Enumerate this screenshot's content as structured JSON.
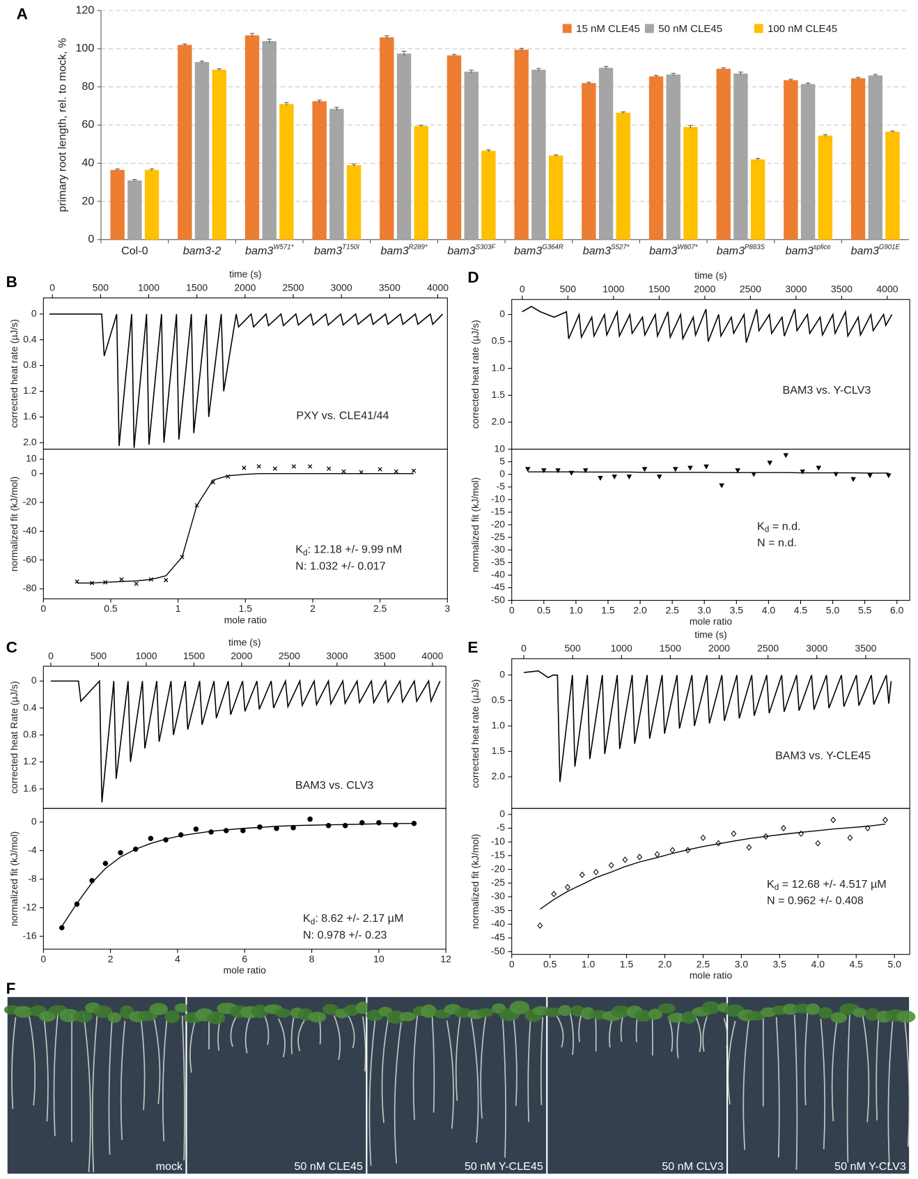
{
  "panel_labels": [
    "A",
    "B",
    "C",
    "D",
    "E",
    "F"
  ],
  "chart_data": [
    {
      "type": "bar",
      "y_label": "primary root length, rel. to mock, %",
      "categories": [
        "Col-0",
        "bam3-2",
        "bam3",
        "bam3",
        "bam3",
        "bam3",
        "bam3",
        "bam3",
        "bam3",
        "bam3",
        "bam3",
        "bam3"
      ],
      "category_superscripts": [
        null,
        null,
        "W571*",
        "T150I",
        "R289*",
        "S303F",
        "G364R",
        "S527*",
        "W807*",
        "P883S",
        "splice",
        "G901E"
      ],
      "series": [
        {
          "name": "15 nM CLE45",
          "color": "#ed7d31",
          "values": [
            36.5,
            102,
            107,
            72.5,
            106,
            96.5,
            99.5,
            82,
            85.5,
            89.5,
            83.5,
            84.5
          ],
          "errors": [
            0.5,
            0.5,
            1,
            0.6,
            0.8,
            0.5,
            0.7,
            0.5,
            0.5,
            0.5,
            0.5,
            0.5
          ]
        },
        {
          "name": "50 nM CLE45",
          "color": "#a5a5a5",
          "values": [
            31,
            93,
            104,
            68.5,
            97.5,
            88,
            89,
            90,
            86.5,
            87,
            81.5,
            86
          ],
          "errors": [
            0.5,
            0.5,
            1,
            0.8,
            1.2,
            0.8,
            0.7,
            0.7,
            0.6,
            0.8,
            0.5,
            0.5
          ]
        },
        {
          "name": "100 nM CLE45",
          "color": "#ffc000",
          "values": [
            36.5,
            89,
            71,
            39,
            59.5,
            46.5,
            44,
            66.5,
            59,
            42,
            54.5,
            56.5
          ],
          "errors": [
            0.5,
            0.5,
            0.8,
            0.6,
            0.4,
            0.5,
            0.4,
            0.4,
            0.8,
            0.5,
            0.5,
            0.4
          ]
        }
      ],
      "ylim": [
        0,
        120
      ],
      "yticks": [
        0,
        20,
        40,
        60,
        80,
        100,
        120
      ],
      "grid": true,
      "legend": "top-right"
    },
    {
      "type": "line",
      "x_label": "time (s)",
      "y_label": "corrected heat rate (µJ/s)",
      "annotation": "PXY vs. CLE41/44",
      "color": "#000000",
      "x_axis": "top",
      "y_inverted": true,
      "x": [
        -30,
        513,
        538,
        668,
        693,
        823,
        848,
        978,
        1003,
        1133,
        1158,
        1288,
        1313,
        1443,
        1468,
        1598,
        1623,
        1753,
        1778,
        1908,
        1933,
        2063,
        2088,
        2218,
        2243,
        2373,
        2398,
        2528,
        2553,
        2683,
        2708,
        2838,
        2863,
        2993,
        3018,
        3148,
        3173,
        3303,
        3328,
        3458,
        3483,
        3613,
        3638,
        3768,
        3793,
        3923,
        3948,
        4050
      ],
      "values": [
        0,
        0,
        0.65,
        0,
        2.05,
        0,
        2.08,
        0,
        2.03,
        0,
        2.0,
        0,
        1.95,
        0,
        1.85,
        0,
        1.6,
        0,
        1.2,
        0,
        0.2,
        0,
        0.2,
        0,
        0.18,
        0,
        0.18,
        0,
        0.17,
        0,
        0.17,
        0,
        0.17,
        0,
        0.17,
        0,
        0.16,
        0,
        0.16,
        0,
        0.16,
        0,
        0.16,
        0,
        0.16,
        0,
        0.16,
        0
      ],
      "xlim": [
        -93,
        4100
      ],
      "xticks": [
        0,
        500,
        1000,
        1500,
        2000,
        2500,
        3000,
        3500,
        4000
      ],
      "ylim": [
        -0.25,
        2.1
      ],
      "yticks": [
        0,
        0.4,
        0.8,
        1.2,
        1.6,
        {
          "value": 2,
          "label": "2.0"
        }
      ]
    },
    {
      "type": "scatter",
      "x_label": "mole ratio",
      "y_label": "normalized fit (kJ/mol)",
      "x": [
        0.25,
        0.36,
        0.46,
        0.58,
        0.69,
        0.8,
        0.91,
        1.03,
        1.14,
        1.26,
        1.37,
        1.49,
        1.6,
        1.72,
        1.86,
        1.98,
        2.12,
        2.23,
        2.36,
        2.5,
        2.62,
        2.75
      ],
      "series": [
        {
          "marker": "x",
          "color": "#000000",
          "values": [
            -75,
            -76,
            -75.5,
            -73.5,
            -76.5,
            -73.5,
            -74,
            -58,
            -22,
            -6,
            -2,
            4,
            5,
            3.5,
            5,
            5,
            3.5,
            1.5,
            1,
            3,
            1.5,
            2
          ]
        },
        {
          "style": "line",
          "color": "#000000",
          "values": [
            -76,
            -76,
            -75.5,
            -75,
            -74.5,
            -73.5,
            -71,
            -58,
            -22,
            -4.5,
            -1.5,
            -0.5,
            0,
            0,
            0,
            0,
            0,
            0,
            0,
            0,
            0,
            0
          ]
        }
      ],
      "xlim": [
        0,
        3
      ],
      "xticks": [
        0,
        0.5,
        1,
        1.5,
        2,
        2.5,
        3
      ],
      "ylim": [
        -87,
        17
      ],
      "yticks": [
        10,
        0,
        -20,
        -40,
        -60,
        -80
      ],
      "kd": {
        "symbol": "K",
        "subscript": "d",
        "text": ": 12.18 +/- 9.99 nM"
      },
      "n_text": "N: 1.032 +/- 0.017"
    },
    {
      "type": "line",
      "x_label": "time (s)",
      "y_label": "corrected heat Rate (µJ/s)",
      "annotation": "BAM3 vs. CLV3",
      "color": "#000000",
      "x_axis": "top",
      "y_inverted": true,
      "x": [
        0,
        290,
        315,
        510,
        535,
        660,
        685,
        810,
        835,
        960,
        985,
        1110,
        1135,
        1260,
        1285,
        1410,
        1435,
        1560,
        1585,
        1710,
        1735,
        1860,
        1885,
        2010,
        2035,
        2160,
        2185,
        2310,
        2335,
        2460,
        2485,
        2610,
        2635,
        2760,
        2785,
        2910,
        2935,
        3060,
        3085,
        3210,
        3235,
        3360,
        3385,
        3510,
        3535,
        3660,
        3685,
        3810,
        3835,
        3960,
        3985,
        4080
      ],
      "values": [
        0,
        0,
        0.3,
        0,
        1.8,
        0,
        1.45,
        0,
        1.2,
        0,
        1.0,
        0,
        0.9,
        0,
        0.8,
        0,
        0.72,
        0,
        0.65,
        0,
        0.55,
        0,
        0.5,
        0,
        0.45,
        0,
        0.42,
        0,
        0.4,
        0,
        0.38,
        0,
        0.36,
        0,
        0.35,
        0,
        0.34,
        0,
        0.33,
        0,
        0.32,
        0,
        0.32,
        0,
        0.31,
        0,
        0.31,
        0,
        0.3,
        0,
        0.3,
        0
      ],
      "xlim": [
        -78,
        4141
      ],
      "xticks": [
        0,
        500,
        1000,
        1500,
        2000,
        2500,
        3000,
        3500,
        4000
      ],
      "ylim": [
        -0.22,
        1.89
      ],
      "yticks": [
        0,
        0.4,
        0.8,
        1.2,
        1.6
      ]
    },
    {
      "type": "scatter",
      "x_label": "mole ratio",
      "y_label": "normalized fit (kJ/mol)",
      "x": [
        0.55,
        1.0,
        1.45,
        1.85,
        2.3,
        2.75,
        3.2,
        3.65,
        4.1,
        4.55,
        5.0,
        5.45,
        5.95,
        6.45,
        6.95,
        7.45,
        7.95,
        8.5,
        9.0,
        9.5,
        10.0,
        10.5,
        11.05
      ],
      "series": [
        {
          "marker": "circle",
          "color": "#000000",
          "values": [
            -14.8,
            -11.5,
            -8.2,
            -5.8,
            -4.3,
            -3.8,
            -2.3,
            -2.5,
            -1.8,
            -1.0,
            -1.4,
            -1.2,
            -1.2,
            -0.7,
            -0.9,
            -0.8,
            0.4,
            -0.5,
            -0.5,
            -0.1,
            -0.1,
            -0.4,
            -0.2
          ]
        },
        {
          "style": "line",
          "color": "#000000",
          "values": [
            -14.6,
            -11.4,
            -8.5,
            -6.5,
            -4.9,
            -3.8,
            -3.0,
            -2.4,
            -1.9,
            -1.6,
            -1.3,
            -1.1,
            -0.9,
            -0.75,
            -0.6,
            -0.5,
            -0.45,
            -0.4,
            -0.35,
            -0.3,
            -0.25,
            -0.22,
            -0.2
          ]
        }
      ],
      "xlim": [
        0,
        12
      ],
      "xticks": [
        0,
        2,
        4,
        6,
        8,
        10,
        12
      ],
      "ylim": [
        -17.8,
        1.9
      ],
      "yticks": [
        0,
        -4,
        -8,
        -12,
        -16
      ],
      "kd": {
        "symbol": "K",
        "subscript": "d",
        "text": ": 8.62 +/- 2.17 µM"
      },
      "n_text": "N: 0.978 +/- 0.23"
    },
    {
      "type": "line",
      "x_label": "time (s)",
      "y_label": "corrected heat rate (µJ/s)",
      "annotation": "BAM3 vs. Y-CLV3",
      "color": "#000000",
      "x_axis": "top",
      "y_inverted": true,
      "x": [
        0,
        100,
        200,
        350,
        484,
        509,
        623,
        648,
        762,
        787,
        901,
        926,
        1040,
        1065,
        1179,
        1204,
        1318,
        1343,
        1457,
        1482,
        1596,
        1621,
        1735,
        1760,
        1874,
        1899,
        2013,
        2038,
        2152,
        2177,
        2291,
        2316,
        2430,
        2455,
        2569,
        2594,
        2708,
        2733,
        2847,
        2872,
        2986,
        3011,
        3125,
        3150,
        3264,
        3289,
        3403,
        3428,
        3542,
        3567,
        3681,
        3706,
        3820,
        3845,
        3959,
        3984,
        4050
      ],
      "values": [
        -0.05,
        -0.15,
        -0.05,
        0.05,
        -0.05,
        0.45,
        0,
        0.42,
        0.05,
        0.4,
        0,
        0.38,
        -0.05,
        0.4,
        0,
        0.35,
        0.05,
        0.38,
        0,
        0.4,
        -0.05,
        0.42,
        0,
        0.45,
        0.05,
        0.38,
        -0.1,
        0.5,
        0,
        0.4,
        0.05,
        0.35,
        0,
        0.52,
        -0.1,
        0.3,
        0,
        0.35,
        0.05,
        0.4,
        -0.1,
        0.3,
        0,
        0.35,
        0.05,
        0.38,
        0,
        0.35,
        -0.05,
        0.4,
        0.05,
        0.38,
        0,
        0.3,
        0,
        0.2,
        0
      ],
      "xlim": [
        -115,
        4246
      ],
      "xticks": [
        0,
        500,
        1000,
        1500,
        2000,
        2500,
        3000,
        3500,
        4000
      ],
      "ylim": [
        -0.28,
        2.5
      ],
      "yticks": [
        0,
        0.5,
        {
          "value": 1,
          "label": "1.0"
        },
        1.5,
        {
          "value": 2,
          "label": "2.0"
        }
      ]
    },
    {
      "type": "scatter",
      "x_label": "mole ratio",
      "y_label": "normalized fit (kJ/mol)",
      "x": [
        0.25,
        0.5,
        0.72,
        0.93,
        1.15,
        1.38,
        1.6,
        1.83,
        2.07,
        2.3,
        2.55,
        2.78,
        3.03,
        3.27,
        3.52,
        3.77,
        4.02,
        4.27,
        4.53,
        4.78,
        5.05,
        5.32,
        5.58,
        5.87
      ],
      "series": [
        {
          "marker": "triangle",
          "color": "#000000",
          "values": [
            2,
            1.5,
            1.5,
            0.5,
            1.5,
            -1.5,
            -1,
            -1,
            2,
            -1,
            2,
            2.5,
            3,
            -4.5,
            1.5,
            0,
            4.5,
            7.5,
            1,
            2.5,
            0,
            -2,
            -0.5,
            -0.5
          ]
        },
        {
          "style": "line",
          "color": "#000000",
          "values": [
            1,
            1,
            1,
            1,
            0.9,
            0.9,
            0.9,
            0.9,
            0.8,
            0.8,
            0.8,
            0.8,
            0.8,
            0.7,
            0.7,
            0.7,
            0.7,
            0.7,
            0.6,
            0.6,
            0.6,
            0.6,
            0.5,
            0.5
          ]
        }
      ],
      "xlim": [
        0,
        6.2
      ],
      "xticks": [
        0,
        0.5,
        {
          "value": 1,
          "label": "1.0"
        },
        1.5,
        {
          "value": 2,
          "label": "2.0"
        },
        2.5,
        {
          "value": 3,
          "label": "3.0"
        },
        3.5,
        {
          "value": 4,
          "label": "4.0"
        },
        4.5,
        {
          "value": 5,
          "label": "5.0"
        },
        5.5,
        {
          "value": 6,
          "label": "6.0"
        }
      ],
      "ylim": [
        -50,
        10
      ],
      "yticks": [
        10,
        5,
        0,
        -5,
        -10,
        -15,
        -20,
        -25,
        -30,
        -35,
        -40,
        -45,
        -50
      ],
      "kd": {
        "symbol": "K",
        "subscript": "d",
        "text": " = n.d."
      },
      "n_text": "N = n.d."
    },
    {
      "type": "line",
      "x_label": "time (s)",
      "y_label": "corrected heat rate (µJ/s)",
      "annotation": "BAM3 vs. Y-CLE45",
      "color": "#000000",
      "x_axis": "top",
      "y_inverted": true,
      "x": [
        0,
        150,
        250,
        300,
        345,
        370,
        498,
        523,
        651,
        676,
        804,
        829,
        957,
        982,
        1110,
        1135,
        1263,
        1288,
        1416,
        1441,
        1569,
        1594,
        1722,
        1747,
        1875,
        1900,
        2028,
        2053,
        2181,
        2206,
        2334,
        2359,
        2487,
        2512,
        2640,
        2665,
        2793,
        2818,
        2946,
        2971,
        3099,
        3124,
        3252,
        3277,
        3405,
        3430,
        3558,
        3583,
        3711,
        3736,
        3760
      ],
      "values": [
        -0.05,
        -0.08,
        0.05,
        0,
        0,
        2.1,
        0,
        1.8,
        0,
        1.65,
        0,
        1.55,
        0,
        1.45,
        0,
        1.35,
        0,
        1.25,
        0,
        1.15,
        0,
        1.05,
        0,
        1.0,
        0,
        0.95,
        0,
        0.9,
        0,
        0.85,
        0,
        0.8,
        0,
        0.75,
        0,
        0.72,
        0,
        0.7,
        0,
        0.68,
        0,
        0.65,
        0,
        0.62,
        0,
        0.6,
        0,
        0.58,
        0,
        0.56,
        0.12
      ],
      "xlim": [
        -123,
        3951
      ],
      "xticks": [
        0,
        500,
        1000,
        1500,
        2000,
        2500,
        3000,
        3500
      ],
      "ylim": [
        -0.32,
        2.62
      ],
      "yticks": [
        0,
        0.5,
        {
          "value": 1,
          "label": "1.0"
        },
        1.5,
        {
          "value": 2,
          "label": "2.0"
        }
      ]
    },
    {
      "type": "scatter",
      "x_label": "mole ratio",
      "y_label": "normalized fit (kJ/mol)",
      "x": [
        0.37,
        0.55,
        0.73,
        0.92,
        1.1,
        1.3,
        1.48,
        1.67,
        1.9,
        2.1,
        2.3,
        2.5,
        2.7,
        2.9,
        3.1,
        3.32,
        3.55,
        3.78,
        4.0,
        4.2,
        4.42,
        4.65,
        4.88
      ],
      "series": [
        {
          "marker": "diamond",
          "color": "#000000",
          "values": [
            -40.5,
            -29,
            -26.5,
            -22,
            -21,
            -18.5,
            -16.5,
            -15.5,
            -14.5,
            -13,
            -13,
            -8.5,
            -10.5,
            -7,
            -12,
            -8,
            -5,
            -7,
            -10.5,
            -2,
            -8.5,
            -5,
            -2
          ]
        },
        {
          "style": "line",
          "color": "#000000",
          "values": [
            -34.5,
            -31,
            -28,
            -25.5,
            -23,
            -21,
            -19,
            -17.3,
            -15.7,
            -14.2,
            -12.9,
            -11.7,
            -10.7,
            -9.7,
            -8.8,
            -8,
            -7.2,
            -6.5,
            -5.9,
            -5.3,
            -4.8,
            -4.3,
            -3.5
          ]
        }
      ],
      "xlim": [
        0,
        5.2
      ],
      "xticks": [
        0,
        0.5,
        {
          "value": 1,
          "label": "1.0"
        },
        1.5,
        {
          "value": 2,
          "label": "2.0"
        },
        2.5,
        {
          "value": 3,
          "label": "3.0"
        },
        3.5,
        {
          "value": 4,
          "label": "4.0"
        },
        4.5,
        {
          "value": 5,
          "label": "5.0"
        }
      ],
      "ylim": [
        -51,
        2.2
      ],
      "yticks": [
        0,
        -5,
        -10,
        -15,
        -20,
        -25,
        -30,
        -35,
        -40,
        -45,
        -50
      ],
      "kd": {
        "symbol": "K",
        "subscript": "d",
        "text": " = 12.68 +/- 4.517 µM"
      },
      "n_text": "N = 0.962 +/- 0.408"
    }
  ],
  "photos": {
    "labels": [
      "mock",
      "50 nM CLE45",
      "50 nM Y-CLE45",
      "50 nM CLV3",
      "50 nM Y-CLV3"
    ]
  }
}
